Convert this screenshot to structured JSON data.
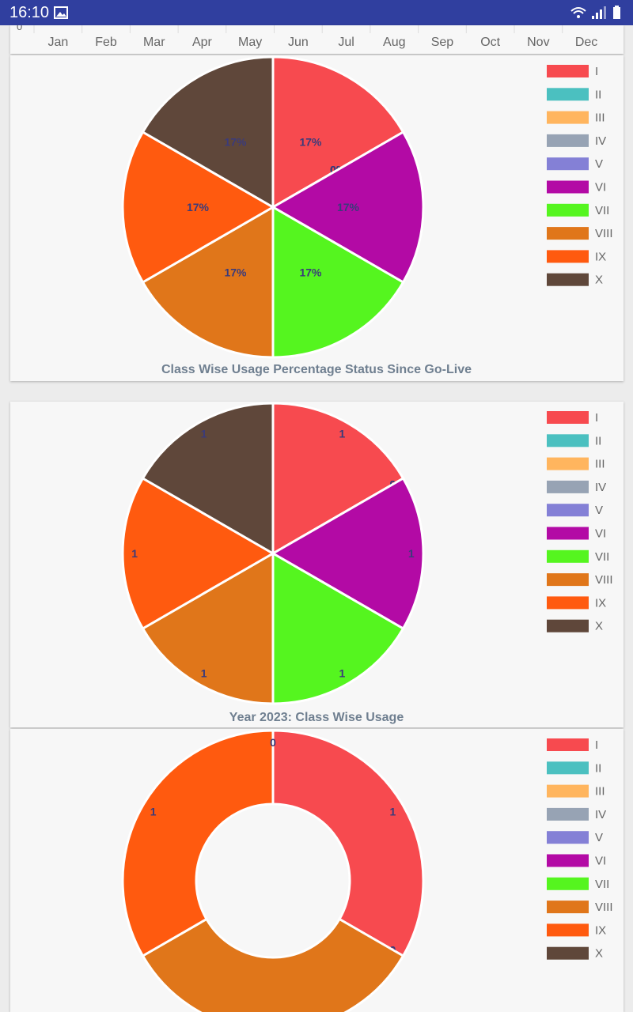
{
  "status_bar": {
    "time": "16:10"
  },
  "top_chart_strip": {
    "y_tick": "0",
    "months": [
      "Jan",
      "Feb",
      "Mar",
      "Apr",
      "May",
      "Jun",
      "Jul",
      "Aug",
      "Sep",
      "Oct",
      "Nov",
      "Dec"
    ]
  },
  "chart_data": [
    {
      "type": "pie",
      "title": "Class Wise Usage Percentage Status Since Go-Live",
      "categories": [
        "I",
        "II",
        "III",
        "IV",
        "V",
        "VI",
        "VII",
        "VIII",
        "IX",
        "X"
      ],
      "colors": [
        "#f74a4f",
        "#4bc0c0",
        "#ffb55e",
        "#97a3b4",
        "#8480d6",
        "#b30aa5",
        "#55f51f",
        "#e0761a",
        "#ff5a0f",
        "#5f473a"
      ],
      "values": [
        16.67,
        0,
        0,
        0,
        0,
        16.67,
        16.67,
        16.67,
        16.67,
        16.67
      ],
      "data_labels": [
        "17%",
        "0%",
        "0%",
        "0%",
        "0%",
        "17%",
        "17%",
        "17%",
        "17%",
        "17%"
      ],
      "legend": "right"
    },
    {
      "type": "pie",
      "title": "Year 2023: Class Wise Usage",
      "categories": [
        "I",
        "II",
        "III",
        "IV",
        "V",
        "VI",
        "VII",
        "VIII",
        "IX",
        "X"
      ],
      "colors": [
        "#f74a4f",
        "#4bc0c0",
        "#ffb55e",
        "#97a3b4",
        "#8480d6",
        "#b30aa5",
        "#55f51f",
        "#e0761a",
        "#ff5a0f",
        "#5f473a"
      ],
      "values": [
        1,
        0,
        0,
        0,
        0,
        1,
        1,
        1,
        1,
        1
      ],
      "data_labels": [
        "1",
        "0",
        "0",
        "0",
        "0",
        "1",
        "1",
        "1",
        "1",
        "1"
      ],
      "legend": "right"
    },
    {
      "type": "doughnut",
      "title": "",
      "categories": [
        "I",
        "II",
        "III",
        "IV",
        "V",
        "VI",
        "VII",
        "VIII",
        "IX",
        "X"
      ],
      "colors": [
        "#f74a4f",
        "#4bc0c0",
        "#ffb55e",
        "#97a3b4",
        "#8480d6",
        "#b30aa5",
        "#55f51f",
        "#e0761a",
        "#ff5a0f",
        "#5f473a"
      ],
      "values": [
        1,
        0,
        0,
        0,
        0,
        0,
        0,
        1,
        1,
        0
      ],
      "data_labels": [
        "1",
        "0",
        "0",
        "0",
        "0",
        "0",
        "0",
        "1",
        "1",
        "0"
      ],
      "legend": "right"
    }
  ]
}
